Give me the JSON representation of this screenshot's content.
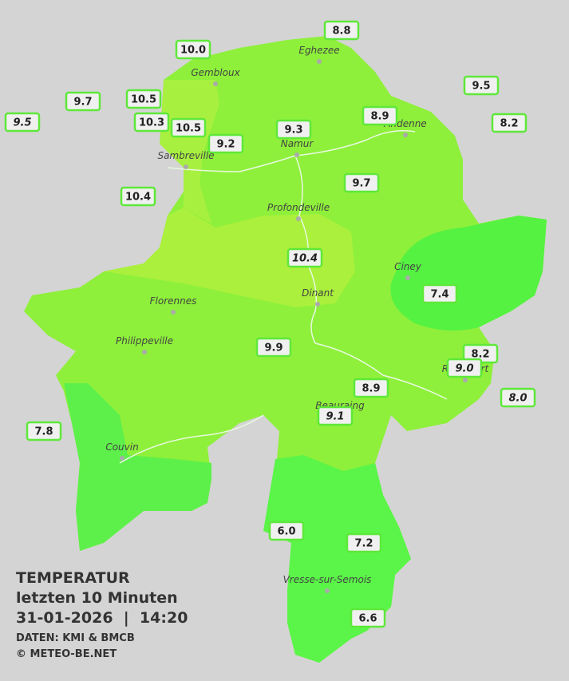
{
  "title": "TEMPERATUR",
  "subtitle": "letzten 10 Minuten",
  "datetime": "31-01-2026  |  14:20",
  "source": "DATEN: KMI & BMCB",
  "copyright": "© METEO-BE.NET",
  "cities": [
    "Eghezee",
    "Gembloux",
    "Andenne",
    "Namur",
    "Sambreville",
    "Profondeville",
    "Ciney",
    "Dinant",
    "Florennes",
    "Philippeville",
    "Rochefort",
    "Beauraing",
    "Couvin",
    "Vresse-sur-Semois"
  ],
  "stations": [
    "8.8",
    "10.0",
    "9.5",
    "9.5",
    "9.7",
    "10.5",
    "10.3",
    "10.5",
    "9.2",
    "9.3",
    "8.9",
    "8.2",
    "10.4",
    "9.7",
    "10.4",
    "7.4",
    "9.9",
    "8.2",
    "9.0",
    "8.0",
    "8.9",
    "9.1",
    "7.8",
    "6.0",
    "7.2",
    "6.6"
  ]
}
